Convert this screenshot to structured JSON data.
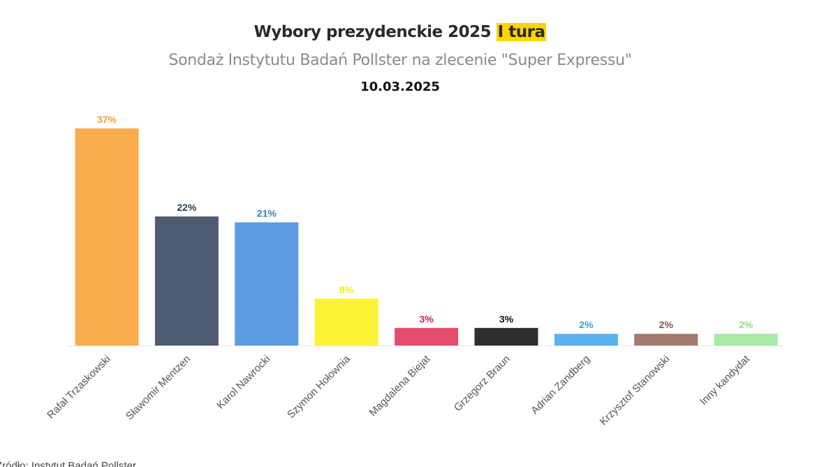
{
  "header": {
    "title_main": "Wybory prezydenckie 2025",
    "title_highlight": "I tura",
    "subtitle": "Sondaż Instytutu Badań Pollster na zlecenie \"Super Expressu\"",
    "date": "10.03.2025"
  },
  "footer": {
    "source": "Źródło: Instytut Badań Pollster"
  },
  "chart_data": {
    "type": "bar",
    "title": "Wybory prezydenckie 2025 I tura",
    "categories": [
      "Rafał Trzaskowski",
      "Sławomir Mentzen",
      "Karol Nawrocki",
      "Szymon Hołownia",
      "Magdalena Biejat",
      "Grzegorz Braun",
      "Adrian Zandberg",
      "Krzysztof Stanowski",
      "Inny kandydat"
    ],
    "values": [
      37,
      22,
      21,
      8,
      3,
      3,
      2,
      2,
      2
    ],
    "data_labels": [
      "37%",
      "22%",
      "21%",
      "8%",
      "3%",
      "3%",
      "2%",
      "2%",
      "2%"
    ],
    "bar_colors": [
      "#f9ad4f",
      "#4f5b70",
      "#5b9ce2",
      "#fbf235",
      "#e34c6c",
      "#2e2e2e",
      "#58b2ee",
      "#a27b6d",
      "#a7eaa7"
    ],
    "label_colors": [
      "#f2a23a",
      "#2f3c52",
      "#3c7fc6",
      "#f3ea13",
      "#c6284d",
      "#111111",
      "#3c9bd9",
      "#7d5a4c",
      "#8fdd8f"
    ],
    "xlabel": "",
    "ylabel": "",
    "ylim": [
      0,
      40
    ],
    "grid": false,
    "legend": "none"
  }
}
